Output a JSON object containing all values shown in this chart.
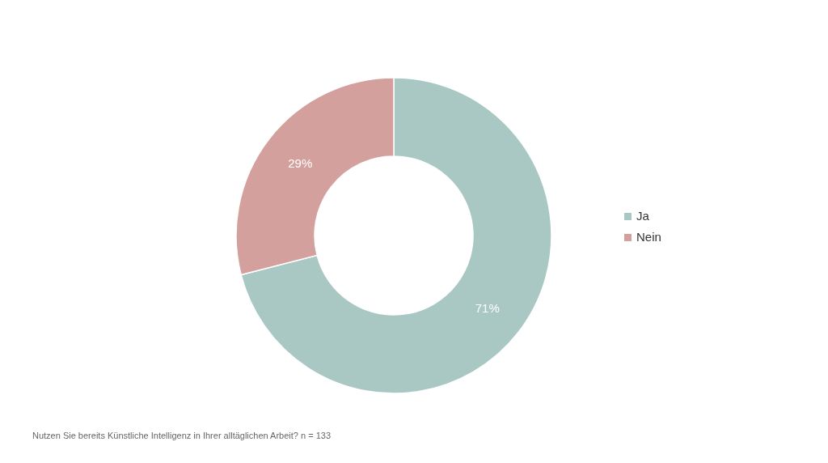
{
  "chart_data": {
    "type": "donut",
    "categories": [
      "Ja",
      "Nein"
    ],
    "values": [
      71,
      29
    ],
    "value_labels": [
      "71%",
      "29%"
    ],
    "colors": [
      "#aac8c3",
      "#d4a09d"
    ],
    "legend": "right",
    "annotations": [
      "Nutzen Sie bereits Künstliche Intelligenz in Ihrer alltäglichen Arbeit? n = 133"
    ]
  }
}
